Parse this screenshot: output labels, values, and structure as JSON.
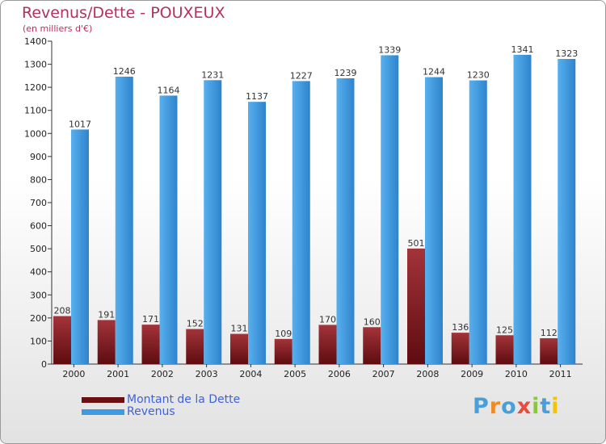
{
  "header": {
    "title": "Revenus/Dette - POUXEUX",
    "subtitle": "(en milliers d'€)"
  },
  "chart_data": {
    "type": "bar",
    "title": "Revenus/Dette - POUXEUX",
    "ylabel": "(en milliers d'€)",
    "xlabel": "",
    "categories": [
      "2000",
      "2001",
      "2002",
      "2003",
      "2004",
      "2005",
      "2006",
      "2007",
      "2008",
      "2009",
      "2010",
      "2011"
    ],
    "series": [
      {
        "name": "Montant de la Dette",
        "color": "#8b2327",
        "values": [
          208,
          191,
          171,
          152,
          131,
          109,
          170,
          160,
          501,
          136,
          125,
          112
        ]
      },
      {
        "name": "Revenus",
        "color": "#3e9be3",
        "values": [
          1017,
          1246,
          1164,
          1231,
          1137,
          1227,
          1239,
          1339,
          1244,
          1230,
          1341,
          1323
        ]
      }
    ],
    "ylim": [
      0,
      1400
    ],
    "yticks": [
      0,
      100,
      200,
      300,
      400,
      500,
      600,
      700,
      800,
      900,
      1000,
      1100,
      1200,
      1300,
      1400
    ],
    "grid": false,
    "legend_position": "bottom-left"
  },
  "legend": {
    "items": [
      {
        "label": "Montant de la Dette",
        "color": "#6b0f12"
      },
      {
        "label": "Revenus",
        "color": "#3e9be3"
      }
    ]
  },
  "logo": {
    "letters": [
      {
        "ch": "P",
        "color": "#4a9fd8"
      },
      {
        "ch": "r",
        "color": "#f08a24"
      },
      {
        "ch": "o",
        "color": "#4a9fd8"
      },
      {
        "ch": "x",
        "color": "#e94b3c"
      },
      {
        "ch": "i",
        "color": "#8cc63f"
      },
      {
        "ch": "t",
        "color": "#4a9fd8"
      },
      {
        "ch": "i",
        "color": "#f2c500"
      }
    ]
  }
}
